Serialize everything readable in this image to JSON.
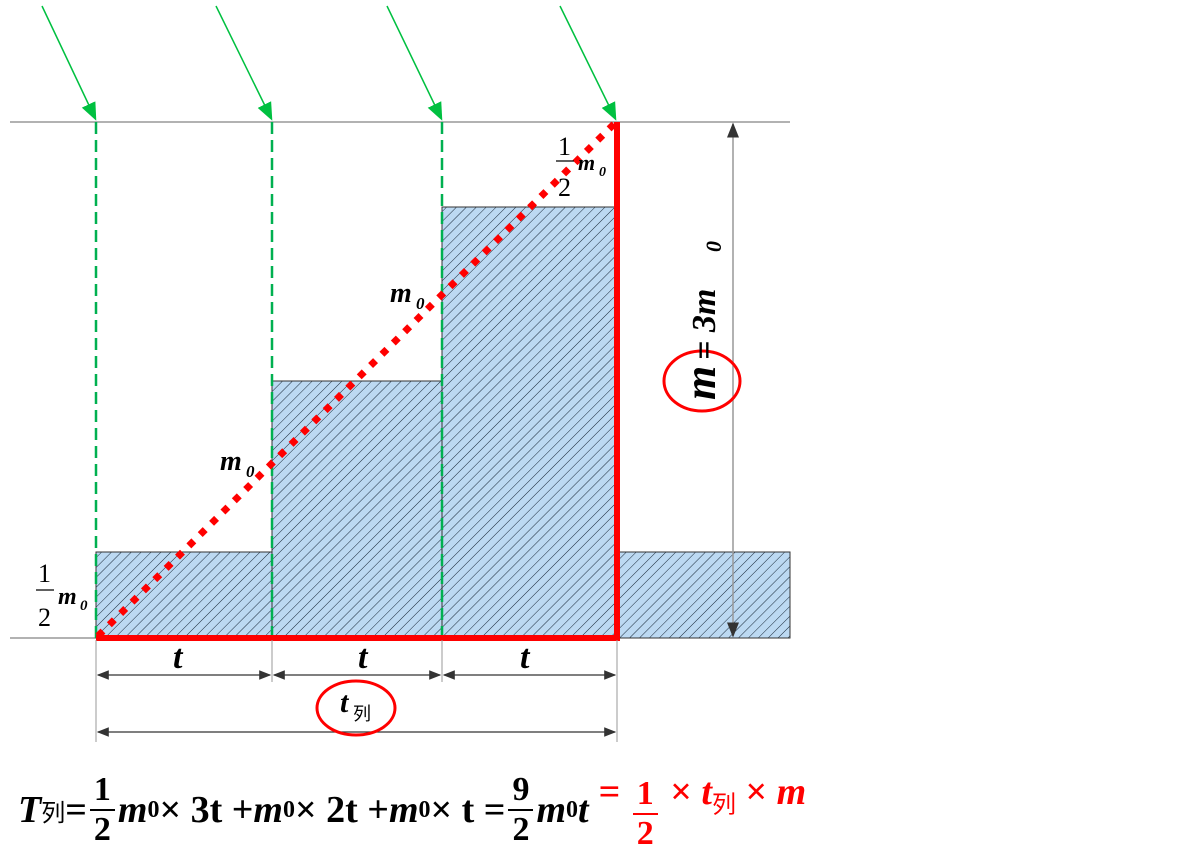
{
  "labels": {
    "half_m0_num": "1",
    "half_m0_den": "2",
    "m0": "m",
    "sub0": "0",
    "t": "t",
    "t_lie": "t",
    "t_lie_sub": "列",
    "m": "m",
    "eq_3m0": "= 3m",
    "eq_3m0_sub": "0"
  },
  "formula": {
    "T": "T",
    "T_sub": "列",
    "eq": " = ",
    "f1_num": "1",
    "f1_den": "2",
    "term1": "m",
    "sub0": "0",
    "x3t": " × 3t + ",
    "term2": "m",
    "x2t": " × 2t + ",
    "term3": "m",
    "xt": " × t = ",
    "f2_num": "9",
    "f2_den": "2",
    "m0t": "m",
    "t_end": "t",
    "red_eq": "= ",
    "red_num": "1",
    "red_den": "2",
    "red_x1": " × ",
    "red_t": "t",
    "red_t_sub": "列",
    "red_x2": " × ",
    "red_m": "m"
  },
  "colors": {
    "accent_red": "#ff0000",
    "arrow_green": "#00c040",
    "fill_blue": "#bcd9f2"
  }
}
